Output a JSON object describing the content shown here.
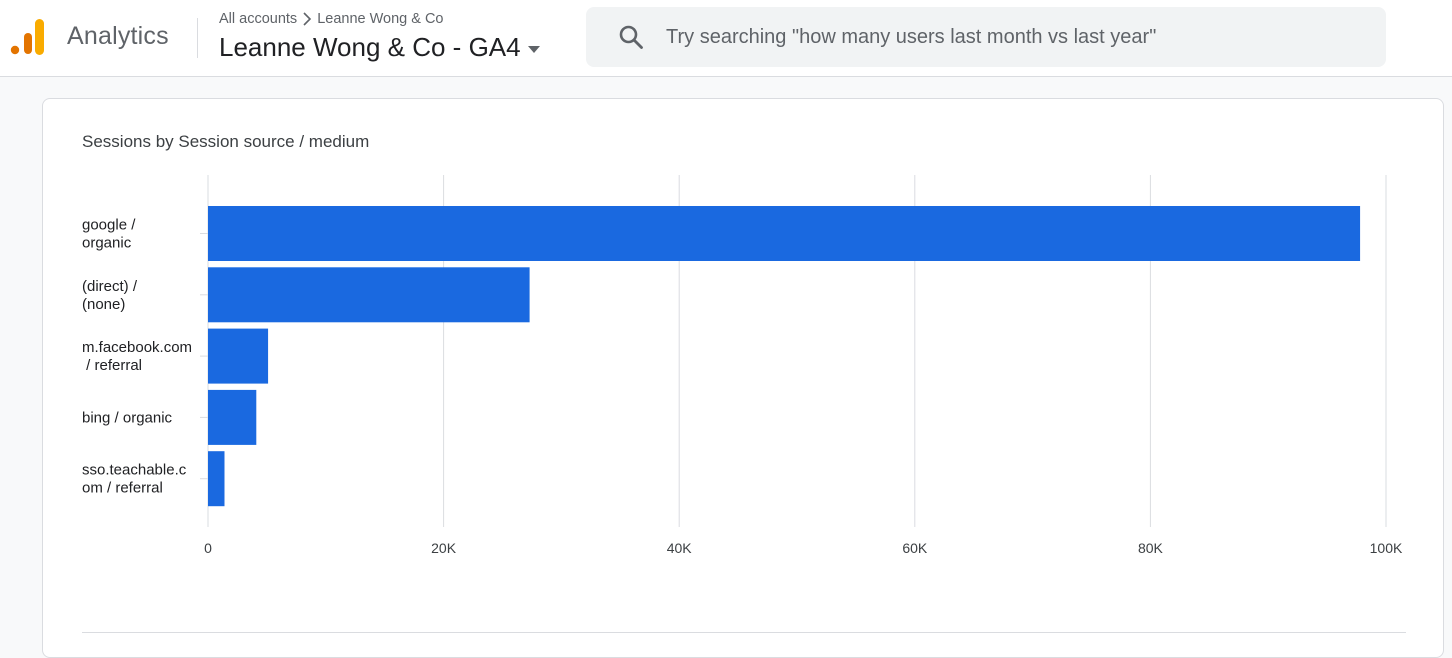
{
  "app": {
    "name": "Analytics"
  },
  "header": {
    "breadcrumb": [
      "All accounts",
      "Leanne Wong & Co"
    ],
    "property_name": "Leanne Wong & Co - GA4"
  },
  "search": {
    "placeholder": "Try searching \"how many users last month vs last year\""
  },
  "colors": {
    "bar": "#1a69e0",
    "logo_orange": "#f9ab00",
    "logo_dark_orange": "#e37400"
  },
  "card": {
    "title": "Sessions by Session source / medium"
  },
  "chart_data": {
    "type": "bar",
    "orientation": "horizontal",
    "title": "Sessions by Session source / medium",
    "categories": [
      [
        "google /",
        "organic"
      ],
      [
        "(direct) /",
        "(none)"
      ],
      [
        "m.facebook.com",
        " / referral"
      ],
      [
        "bing / organic"
      ],
      [
        "sso.teachable.c",
        "om / referral"
      ]
    ],
    "values": [
      97800,
      27300,
      5100,
      4100,
      1400
    ],
    "xlim": [
      0,
      100000
    ],
    "xticks": [
      0,
      20000,
      40000,
      60000,
      80000,
      100000
    ],
    "xtick_labels": [
      "0",
      "20K",
      "40K",
      "60K",
      "80K",
      "100K"
    ],
    "grid": true,
    "legend": false
  }
}
